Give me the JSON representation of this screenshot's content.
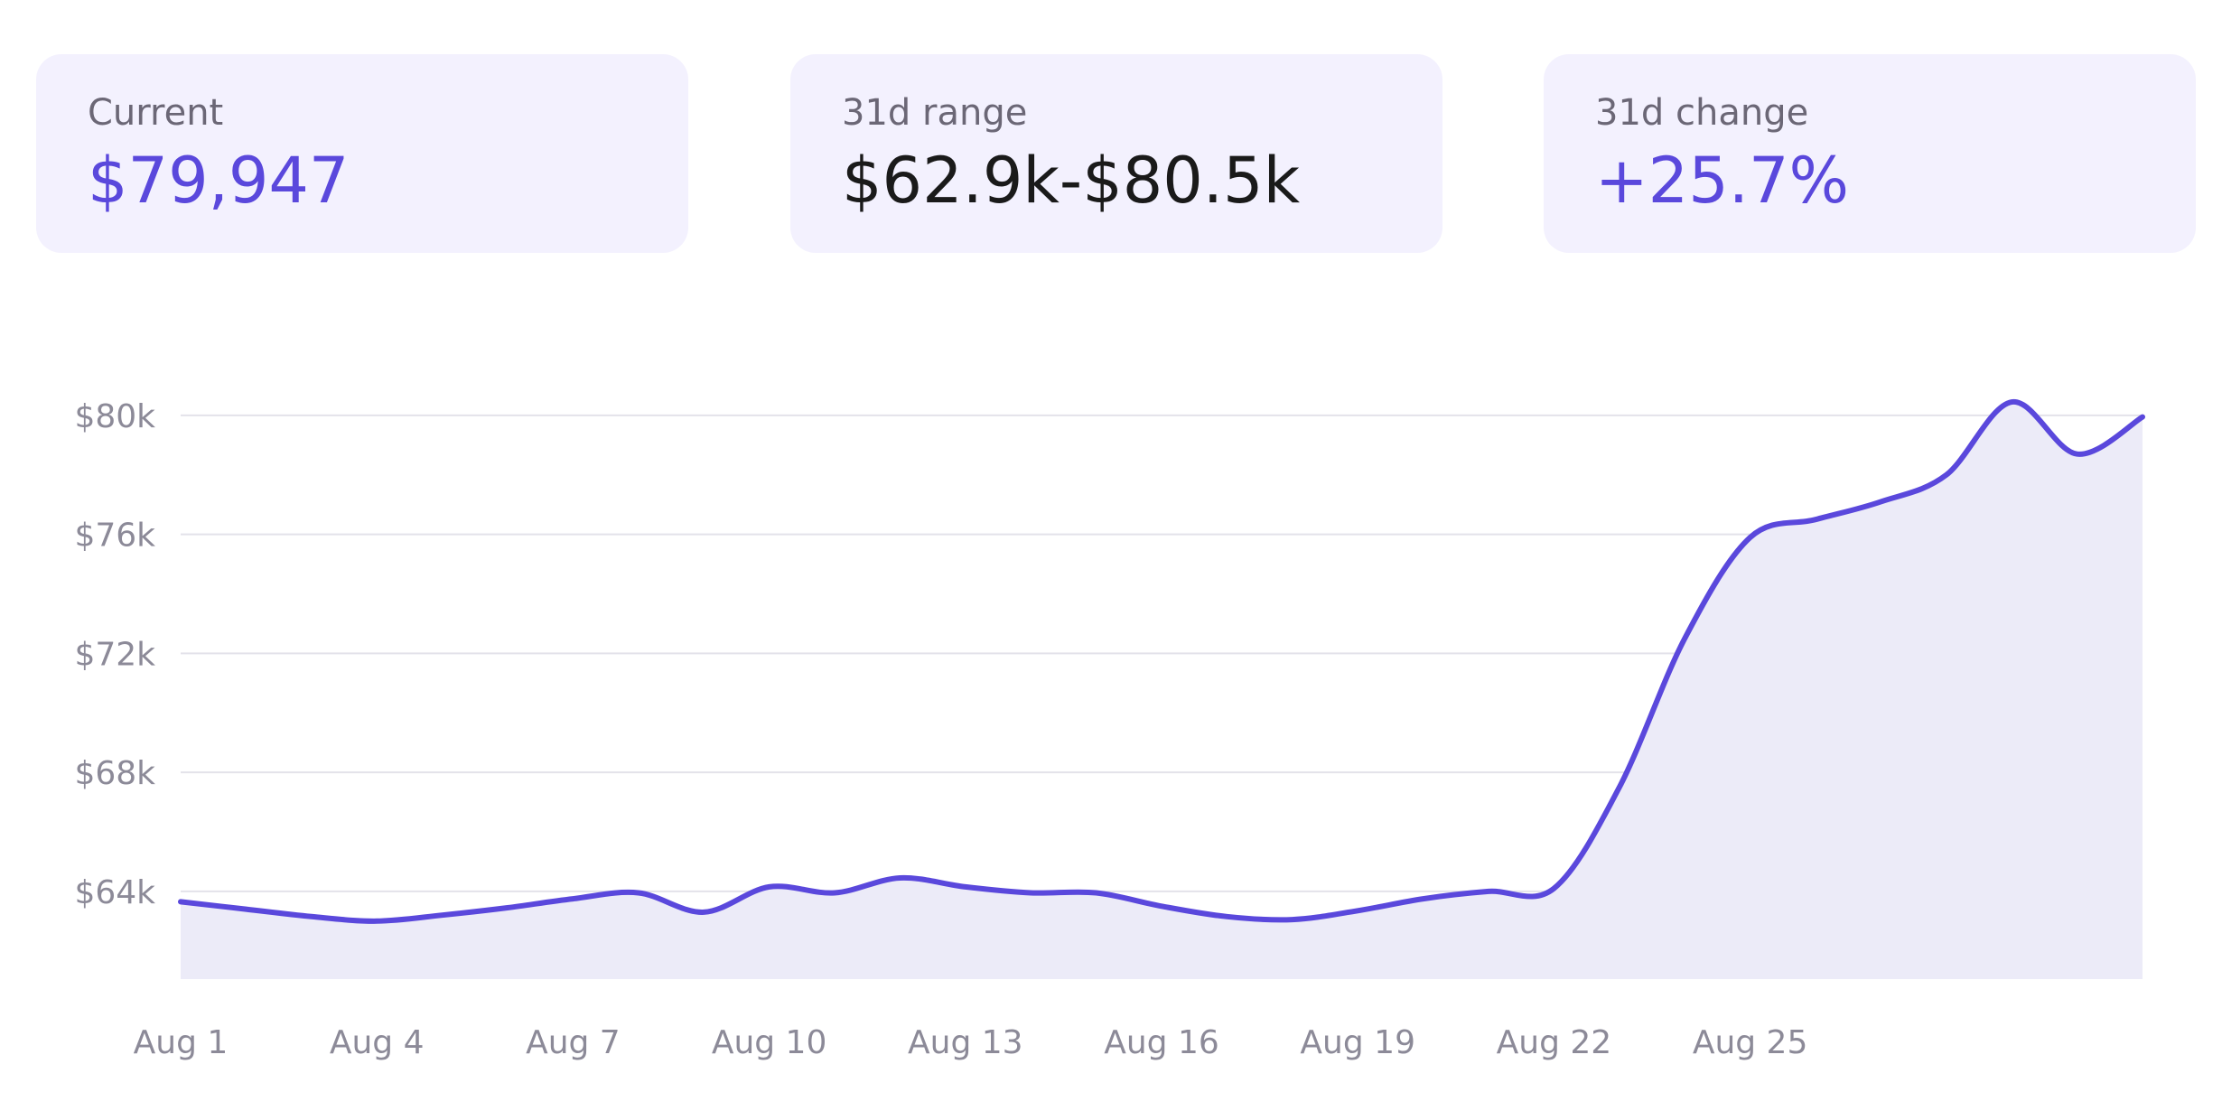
{
  "stats": {
    "current": {
      "label": "Current",
      "value": "$79,947"
    },
    "range": {
      "label": "31d range",
      "value": "$62.9k-$80.5k"
    },
    "change": {
      "label": "31d change",
      "value": "+25.7%"
    }
  },
  "colors": {
    "accent": "#5a48dc",
    "card_bg": "#f3f1fe",
    "area_fill": "#ecebf8",
    "grid": "#e3e2ea",
    "tick_text": "#8c8a98",
    "label_text": "#6b6776",
    "neutral_value": "#1a1a1a"
  },
  "chart_data": {
    "type": "area",
    "title": "",
    "xlabel": "",
    "ylabel": "",
    "x_unit": "day of August",
    "x": [
      1,
      2,
      3,
      4,
      5,
      6,
      7,
      8,
      9,
      10,
      11,
      12,
      13,
      14,
      15,
      16,
      17,
      18,
      19,
      20,
      21,
      22,
      23,
      24,
      25,
      26,
      27,
      28,
      29,
      30,
      31
    ],
    "series": [
      {
        "values": [
          63650,
          63400,
          63150,
          63000,
          63200,
          63450,
          63750,
          63950,
          63300,
          64150,
          63950,
          64450,
          64150,
          63950,
          63950,
          63500,
          63150,
          63050,
          63350,
          63750,
          64000,
          64100,
          67500,
          72500,
          75900,
          76500,
          77100,
          78000,
          80450,
          78700,
          79950
        ]
      }
    ],
    "y_ticks": [
      64000,
      68000,
      72000,
      76000,
      80000
    ],
    "y_tick_labels": [
      "$64k",
      "$68k",
      "$72k",
      "$76k",
      "$80k"
    ],
    "x_ticks": [
      1,
      4,
      7,
      10,
      13,
      16,
      19,
      22,
      25
    ],
    "x_tick_labels": [
      "Aug 1",
      "Aug 4",
      "Aug 7",
      "Aug 10",
      "Aug 13",
      "Aug 16",
      "Aug 19",
      "Aug 22",
      "Aug 25"
    ],
    "ylim": [
      61050,
      81820
    ],
    "xlim": [
      1,
      31
    ],
    "grid": true,
    "legend": "none"
  }
}
